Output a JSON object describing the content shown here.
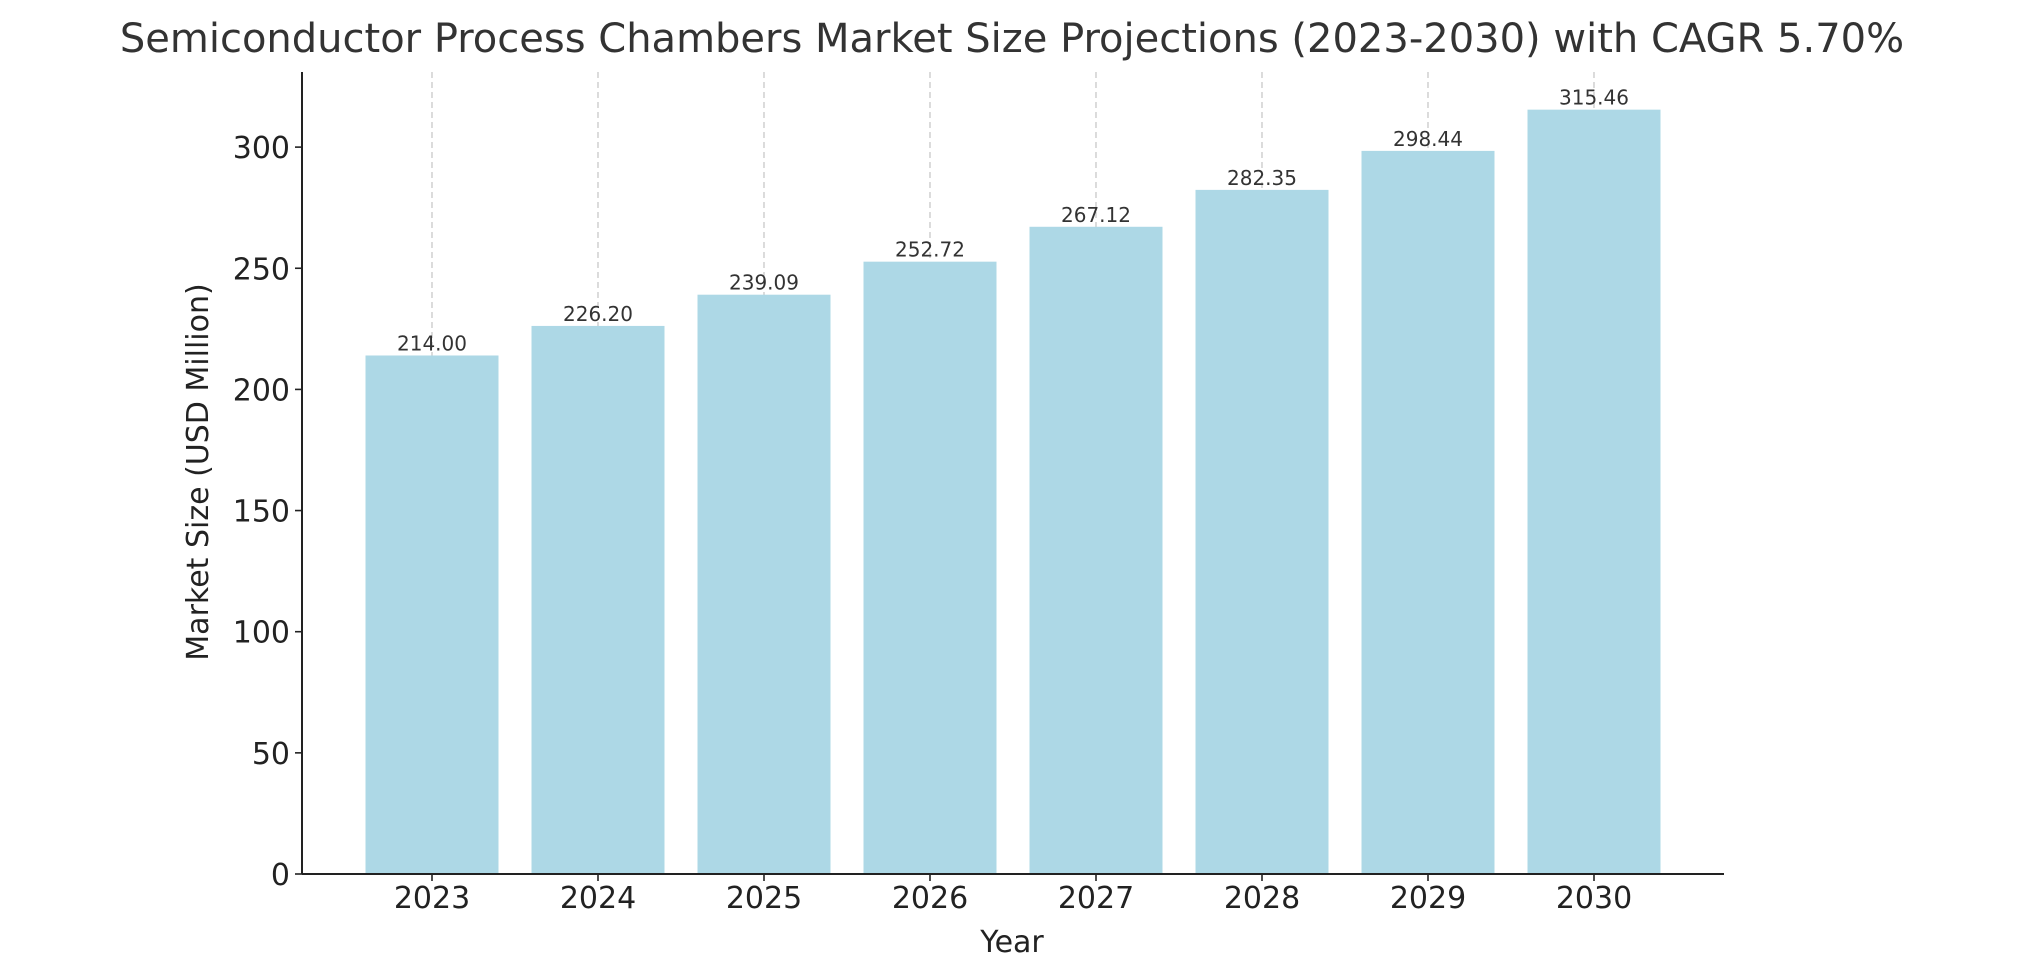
{
  "chart_data": {
    "type": "bar",
    "title": "Semiconductor Process Chambers Market Size Projections (2023-2030) with CAGR 5.70%",
    "xlabel": "Year",
    "ylabel": "Market Size (USD Million)",
    "categories": [
      "2023",
      "2024",
      "2025",
      "2026",
      "2027",
      "2028",
      "2029",
      "2030"
    ],
    "values": [
      214.0,
      226.2,
      239.09,
      252.72,
      267.12,
      282.35,
      298.44,
      315.46
    ],
    "data_labels": [
      "214.00",
      "226.20",
      "239.09",
      "252.72",
      "267.12",
      "282.35",
      "298.44",
      "315.46"
    ],
    "ylim": [
      0,
      331
    ],
    "yticks": [
      0,
      50,
      100,
      150,
      200,
      250,
      300
    ],
    "grid": "x-dashed",
    "legend": "none",
    "colors": {
      "bar": "#add8e6",
      "grid": "#c8c8c8",
      "axis": "#222222"
    }
  }
}
